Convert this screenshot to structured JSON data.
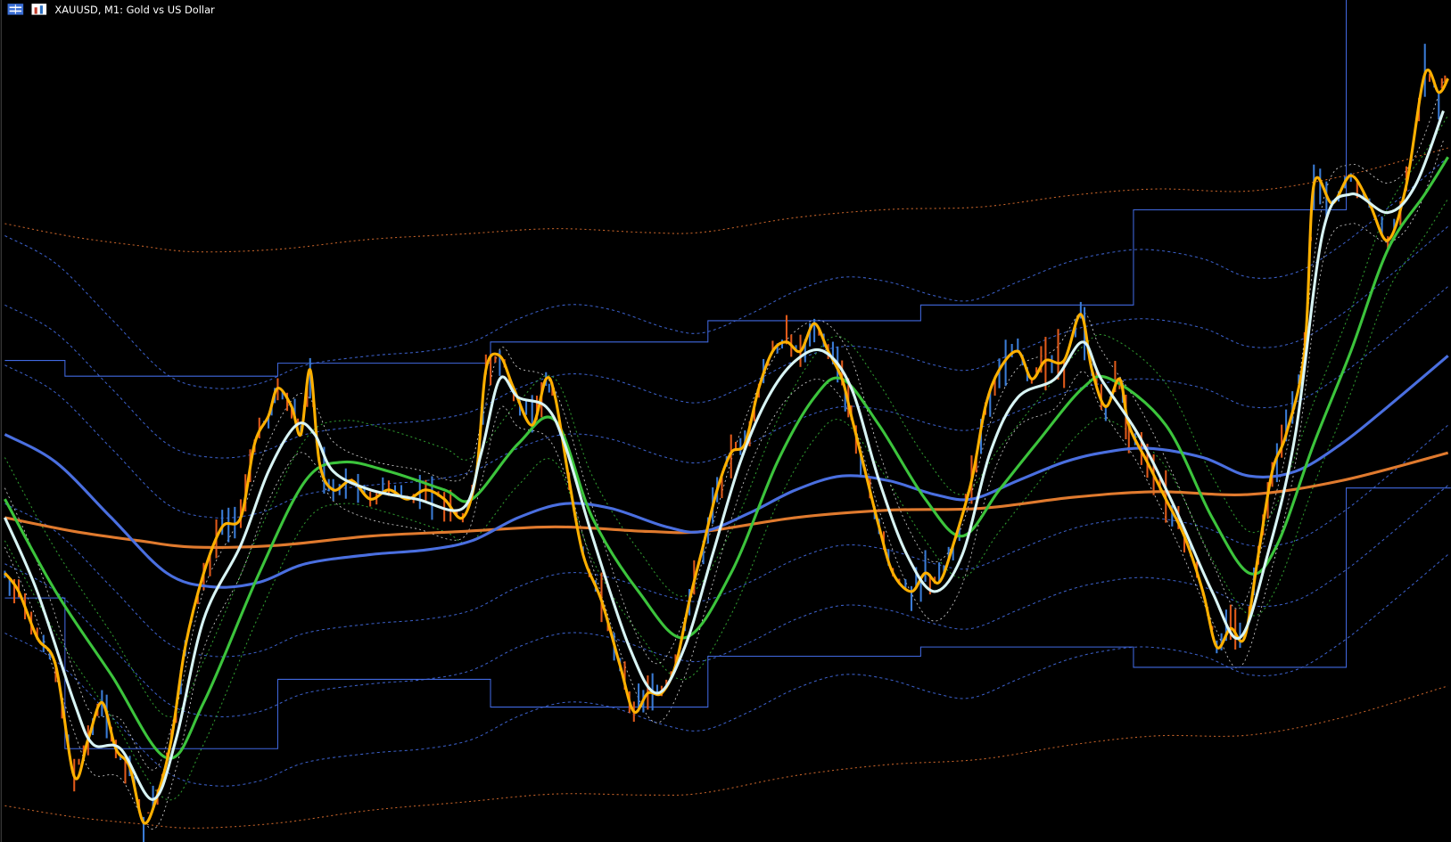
{
  "header": {
    "title": "XAUUSD, M1:  Gold vs US Dollar"
  }
}
